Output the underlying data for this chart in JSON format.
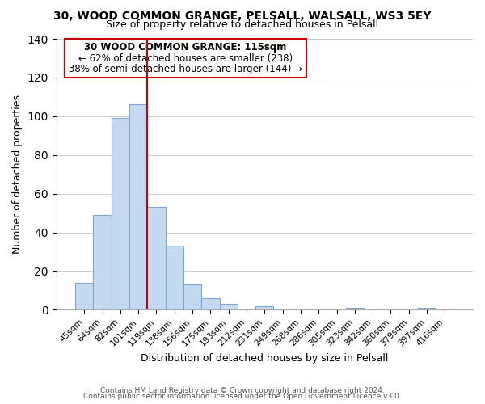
{
  "title1": "30, WOOD COMMON GRANGE, PELSALL, WALSALL, WS3 5EY",
  "title2": "Size of property relative to detached houses in Pelsall",
  "xlabel": "Distribution of detached houses by size in Pelsall",
  "ylabel": "Number of detached properties",
  "bar_labels": [
    "45sqm",
    "64sqm",
    "82sqm",
    "101sqm",
    "119sqm",
    "138sqm",
    "156sqm",
    "175sqm",
    "193sqm",
    "212sqm",
    "231sqm",
    "249sqm",
    "268sqm",
    "286sqm",
    "305sqm",
    "323sqm",
    "342sqm",
    "360sqm",
    "379sqm",
    "397sqm",
    "416sqm"
  ],
  "bar_values": [
    14,
    49,
    99,
    106,
    53,
    33,
    13,
    6,
    3,
    0,
    2,
    0,
    0,
    0,
    0,
    1,
    0,
    0,
    0,
    1,
    0
  ],
  "bar_color": "#c5d9f1",
  "bar_edge_color": "#7ba7d4",
  "vline_color": "#cc0000",
  "ylim": [
    0,
    140
  ],
  "yticks": [
    0,
    20,
    40,
    60,
    80,
    100,
    120,
    140
  ],
  "annotation_title": "30 WOOD COMMON GRANGE: 115sqm",
  "annotation_line1": "← 62% of detached houses are smaller (238)",
  "annotation_line2": "38% of semi-detached houses are larger (144) →",
  "footer1": "Contains HM Land Registry data © Crown copyright and database right 2024.",
  "footer2": "Contains public sector information licensed under the Open Government Licence v3.0."
}
